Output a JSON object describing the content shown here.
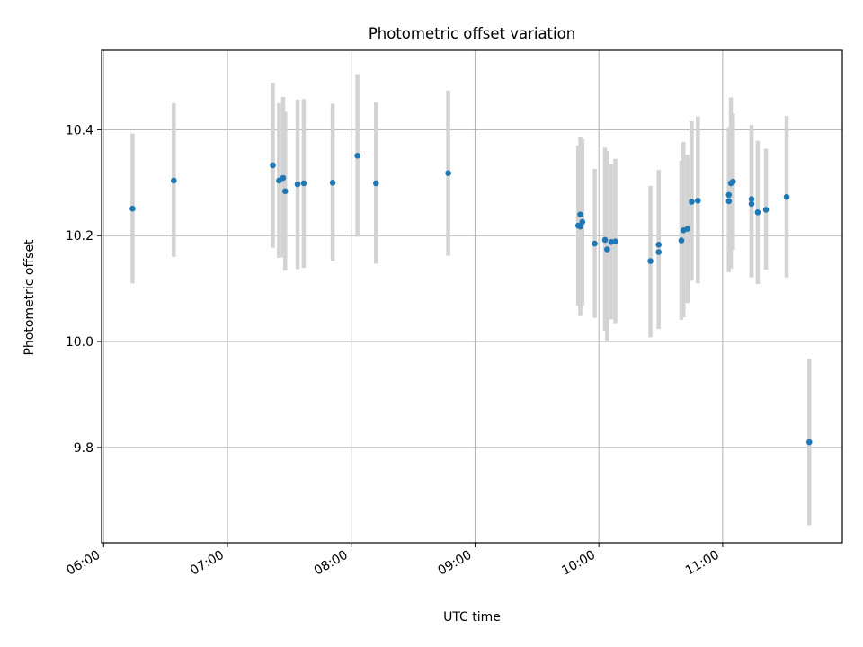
{
  "chart_data": {
    "type": "scatter",
    "title": "Photometric offset variation",
    "xlabel": "UTC time",
    "ylabel": "Photometric offset",
    "xlim": [
      "05:59",
      "11:58"
    ],
    "ylim": [
      9.62,
      10.55
    ],
    "x_ticks": [
      "06:00",
      "07:00",
      "08:00",
      "09:00",
      "10:00",
      "11:00"
    ],
    "y_ticks": [
      9.8,
      10.0,
      10.2,
      10.4
    ],
    "grid": true,
    "colors": {
      "marker": "#1f77b4",
      "errorbar": "#d3d3d3",
      "grid": "#b0b0b0"
    },
    "points": [
      {
        "x": "06:14",
        "y": 10.251,
        "lo": 10.11,
        "hi": 10.393
      },
      {
        "x": "06:34",
        "y": 10.304,
        "lo": 10.16,
        "hi": 10.45
      },
      {
        "x": "07:22",
        "y": 10.333,
        "lo": 10.177,
        "hi": 10.489
      },
      {
        "x": "07:25",
        "y": 10.304,
        "lo": 10.158,
        "hi": 10.45
      },
      {
        "x": "07:27",
        "y": 10.309,
        "lo": 10.159,
        "hi": 10.462
      },
      {
        "x": "07:28",
        "y": 10.284,
        "lo": 10.134,
        "hi": 10.434
      },
      {
        "x": "07:34",
        "y": 10.297,
        "lo": 10.137,
        "hi": 10.457
      },
      {
        "x": "07:37",
        "y": 10.299,
        "lo": 10.139,
        "hi": 10.458
      },
      {
        "x": "07:51",
        "y": 10.3,
        "lo": 10.152,
        "hi": 10.449
      },
      {
        "x": "08:03",
        "y": 10.351,
        "lo": 10.198,
        "hi": 10.505
      },
      {
        "x": "08:12",
        "y": 10.299,
        "lo": 10.147,
        "hi": 10.452
      },
      {
        "x": "08:47",
        "y": 10.318,
        "lo": 10.162,
        "hi": 10.474
      },
      {
        "x": "09:50",
        "y": 10.219,
        "lo": 10.068,
        "hi": 10.37
      },
      {
        "x": "09:51",
        "y": 10.24,
        "lo": 10.048,
        "hi": 10.387
      },
      {
        "x": "09:51",
        "y": 10.217,
        "lo": 10.062,
        "hi": 10.372
      },
      {
        "x": "09:52",
        "y": 10.226,
        "lo": 10.068,
        "hi": 10.382
      },
      {
        "x": "09:58",
        "y": 10.185,
        "lo": 10.045,
        "hi": 10.326
      },
      {
        "x": "10:03",
        "y": 10.192,
        "lo": 10.02,
        "hi": 10.366
      },
      {
        "x": "10:04",
        "y": 10.174,
        "lo": 10.0,
        "hi": 10.36
      },
      {
        "x": "10:06",
        "y": 10.188,
        "lo": 10.042,
        "hi": 10.335
      },
      {
        "x": "10:08",
        "y": 10.189,
        "lo": 10.033,
        "hi": 10.345
      },
      {
        "x": "10:25",
        "y": 10.152,
        "lo": 10.008,
        "hi": 10.294
      },
      {
        "x": "10:29",
        "y": 10.183,
        "lo": 10.04,
        "hi": 10.324
      },
      {
        "x": "10:29",
        "y": 10.169,
        "lo": 10.024,
        "hi": 10.313
      },
      {
        "x": "10:40",
        "y": 10.191,
        "lo": 10.041,
        "hi": 10.342
      },
      {
        "x": "10:41",
        "y": 10.21,
        "lo": 10.046,
        "hi": 10.377
      },
      {
        "x": "10:43",
        "y": 10.213,
        "lo": 10.073,
        "hi": 10.353
      },
      {
        "x": "10:45",
        "y": 10.264,
        "lo": 10.115,
        "hi": 10.416
      },
      {
        "x": "10:48",
        "y": 10.266,
        "lo": 10.11,
        "hi": 10.425
      },
      {
        "x": "11:03",
        "y": 10.277,
        "lo": 10.147,
        "hi": 10.405
      },
      {
        "x": "11:03",
        "y": 10.265,
        "lo": 10.131,
        "hi": 10.398
      },
      {
        "x": "11:04",
        "y": 10.299,
        "lo": 10.138,
        "hi": 10.461
      },
      {
        "x": "11:05",
        "y": 10.302,
        "lo": 10.173,
        "hi": 10.43
      },
      {
        "x": "11:14",
        "y": 10.269,
        "lo": 10.124,
        "hi": 10.409
      },
      {
        "x": "11:14",
        "y": 10.26,
        "lo": 10.121,
        "hi": 10.397
      },
      {
        "x": "11:17",
        "y": 10.244,
        "lo": 10.109,
        "hi": 10.379
      },
      {
        "x": "11:21",
        "y": 10.249,
        "lo": 10.136,
        "hi": 10.364
      },
      {
        "x": "11:31",
        "y": 10.273,
        "lo": 10.121,
        "hi": 10.426
      },
      {
        "x": "11:42",
        "y": 9.81,
        "lo": 9.653,
        "hi": 9.968
      }
    ]
  }
}
